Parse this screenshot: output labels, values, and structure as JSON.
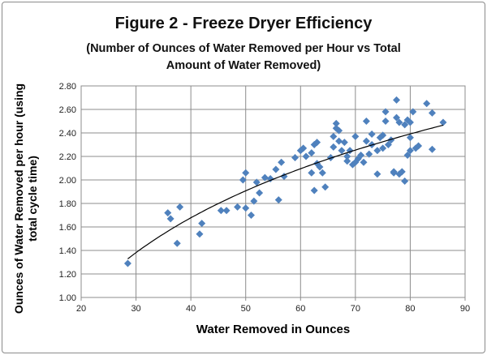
{
  "chart_data": {
    "type": "scatter",
    "title": "Figure 2 - Freeze Dryer Efficiency",
    "subtitle": [
      "(Number of Ounces of Water Removed per Hour vs Total",
      "Amount of Water Removed)"
    ],
    "xlabel": "Water Removed in Ounces",
    "ylabel": "Ounces of Water Removed per hour (using total cycle time)",
    "xlim": [
      20,
      90
    ],
    "ylim": [
      1.0,
      2.8
    ],
    "xticks": [
      "20",
      "30",
      "40",
      "50",
      "60",
      "70",
      "80",
      "90"
    ],
    "yticks": [
      "1.00",
      "1.20",
      "1.40",
      "1.60",
      "1.80",
      "2.00",
      "2.20",
      "2.40",
      "2.60",
      "2.80"
    ],
    "grid": true,
    "legend": "none",
    "marker_color": "#4F81BD",
    "trendline": {
      "type": "logarithmic",
      "color": "#000000",
      "x_range": [
        28.5,
        86
      ]
    },
    "points": [
      [
        28.5,
        1.29
      ],
      [
        35.8,
        1.72
      ],
      [
        36.3,
        1.67
      ],
      [
        37.5,
        1.46
      ],
      [
        38,
        1.77
      ],
      [
        41.6,
        1.54
      ],
      [
        42,
        1.63
      ],
      [
        45.5,
        1.74
      ],
      [
        46.5,
        1.74
      ],
      [
        48.5,
        1.77
      ],
      [
        49.5,
        2.0
      ],
      [
        50,
        2.06
      ],
      [
        50,
        1.76
      ],
      [
        51,
        1.7
      ],
      [
        51.5,
        1.82
      ],
      [
        52,
        1.98
      ],
      [
        52.5,
        1.89
      ],
      [
        53.5,
        2.02
      ],
      [
        54.5,
        2.01
      ],
      [
        55.5,
        2.09
      ],
      [
        56,
        1.83
      ],
      [
        56.5,
        2.15
      ],
      [
        57,
        2.03
      ],
      [
        59,
        2.19
      ],
      [
        60,
        2.25
      ],
      [
        60.5,
        2.27
      ],
      [
        61,
        2.2
      ],
      [
        62,
        2.06
      ],
      [
        62,
        2.23
      ],
      [
        62.5,
        2.3
      ],
      [
        62.5,
        1.91
      ],
      [
        63,
        2.32
      ],
      [
        63,
        2.14
      ],
      [
        63.5,
        2.11
      ],
      [
        64,
        2.06
      ],
      [
        64.5,
        1.94
      ],
      [
        65.5,
        2.19
      ],
      [
        66,
        2.37
      ],
      [
        66,
        2.28
      ],
      [
        66.5,
        2.44
      ],
      [
        66.5,
        2.48
      ],
      [
        67,
        2.42
      ],
      [
        67,
        2.33
      ],
      [
        67.5,
        2.25
      ],
      [
        68,
        2.32
      ],
      [
        68.5,
        2.16
      ],
      [
        68.5,
        2.2
      ],
      [
        69,
        2.25
      ],
      [
        69.5,
        2.13
      ],
      [
        70,
        2.37
      ],
      [
        70,
        2.15
      ],
      [
        70.5,
        2.18
      ],
      [
        71,
        2.21
      ],
      [
        71.5,
        2.15
      ],
      [
        72,
        2.33
      ],
      [
        72,
        2.5
      ],
      [
        72.5,
        2.22
      ],
      [
        73,
        2.39
      ],
      [
        73,
        2.3
      ],
      [
        74,
        2.05
      ],
      [
        74,
        2.25
      ],
      [
        74.5,
        2.36
      ],
      [
        75,
        2.27
      ],
      [
        75,
        2.38
      ],
      [
        75.5,
        2.58
      ],
      [
        75.5,
        2.5
      ],
      [
        76,
        2.3
      ],
      [
        76.5,
        2.34
      ],
      [
        77,
        2.07
      ],
      [
        77,
        2.06
      ],
      [
        77.5,
        2.53
      ],
      [
        77.5,
        2.68
      ],
      [
        78,
        2.05
      ],
      [
        78,
        2.49
      ],
      [
        78.5,
        2.07
      ],
      [
        79,
        1.99
      ],
      [
        79,
        2.47
      ],
      [
        79.5,
        2.51
      ],
      [
        79.5,
        2.21
      ],
      [
        80,
        2.36
      ],
      [
        80,
        2.25
      ],
      [
        80,
        2.49
      ],
      [
        80.5,
        2.58
      ],
      [
        81,
        2.27
      ],
      [
        81.5,
        2.29
      ],
      [
        83,
        2.65
      ],
      [
        84,
        2.57
      ],
      [
        84,
        2.26
      ],
      [
        86,
        2.49
      ]
    ]
  }
}
